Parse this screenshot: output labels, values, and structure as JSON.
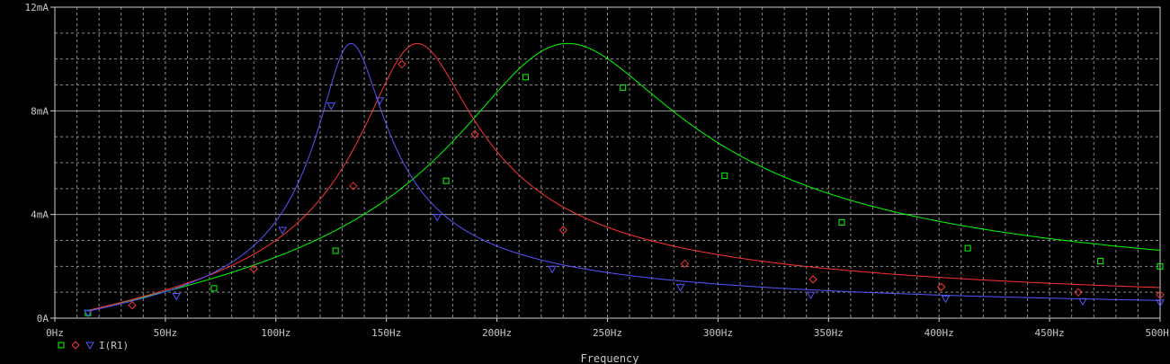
{
  "chart_data": {
    "type": "line",
    "xlabel": "Frequency",
    "ylabel": "",
    "xlim": [
      0,
      500
    ],
    "ylim": [
      0,
      12
    ],
    "x_ticks": [
      0,
      50,
      100,
      150,
      200,
      250,
      300,
      350,
      400,
      450,
      500
    ],
    "x_tick_labels": [
      "0Hz",
      "50Hz",
      "100Hz",
      "150Hz",
      "200Hz",
      "250Hz",
      "300Hz",
      "350Hz",
      "400Hz",
      "450Hz",
      "500Hz"
    ],
    "y_ticks": [
      0,
      4,
      8,
      12
    ],
    "y_tick_labels": [
      "0A",
      "4mA",
      "8mA",
      "12mA"
    ],
    "grid": true,
    "legend_label": "I(R1)",
    "series": [
      {
        "color": "#00ff00",
        "marker": "square",
        "x": [
          15,
          72,
          127,
          177,
          213,
          257,
          303,
          356,
          413,
          473,
          500
        ],
        "y": [
          0.2,
          1.15,
          2.6,
          5.3,
          9.3,
          8.9,
          5.5,
          3.7,
          2.7,
          2.2,
          2.0
        ],
        "curve": {
          "peak_x": 232,
          "peak_y": 10.6,
          "bw": 100
        }
      },
      {
        "color": "#ff3333",
        "marker": "diamond",
        "x": [
          35,
          90,
          135,
          157,
          190,
          230,
          285,
          343,
          401,
          463,
          500
        ],
        "y": [
          0.5,
          1.9,
          5.1,
          9.8,
          7.1,
          3.4,
          2.1,
          1.5,
          1.2,
          1.0,
          0.9
        ],
        "curve": {
          "peak_x": 164,
          "peak_y": 10.6,
          "bw": 50
        }
      },
      {
        "color": "#5555ff",
        "marker": "triangle",
        "x": [
          15,
          55,
          103,
          125,
          147,
          173,
          225,
          283,
          342,
          403,
          465,
          500
        ],
        "y": [
          0.2,
          0.85,
          3.4,
          8.2,
          8.4,
          3.9,
          1.9,
          1.2,
          0.9,
          0.75,
          0.65,
          0.6
        ],
        "curve": {
          "peak_x": 134,
          "peak_y": 10.6,
          "bw": 30
        }
      }
    ]
  }
}
